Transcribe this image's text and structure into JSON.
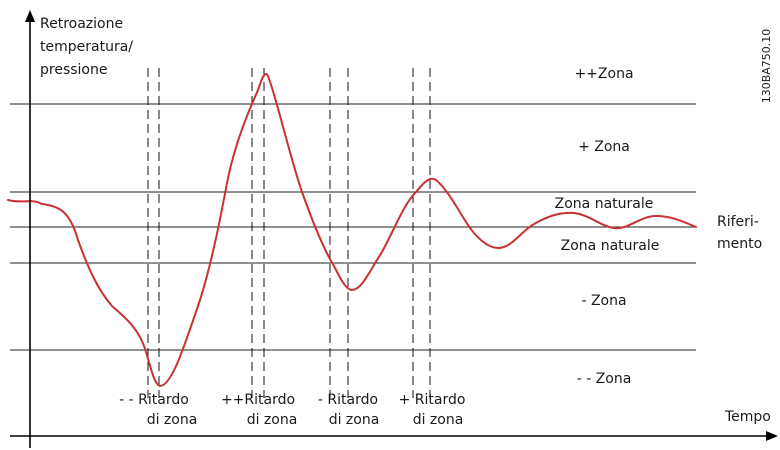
{
  "axes": {
    "y_label": [
      "Retroazione",
      "temperatura/",
      "pressione"
    ],
    "x_label": "Tempo"
  },
  "figure_code": "130BA750.10",
  "zones": {
    "pp_zone": "++Zona",
    "p_zone": "+ Zona",
    "natural_upper": "Zona naturale",
    "natural_lower": "Zona naturale",
    "m_zone": "-   Zona",
    "mm_zone": "- - Zona"
  },
  "reference": [
    "Riferi-",
    "mento"
  ],
  "delays": [
    {
      "prefix": "- - Ritardo",
      "line2": "di zona"
    },
    {
      "prefix": "++Ritardo",
      "line2": "di zona"
    },
    {
      "prefix": "- Ritardo",
      "line2": "di zona"
    },
    {
      "prefix": "+ Ritardo",
      "line2": "di zona"
    }
  ],
  "colors": {
    "curve": "#c83232",
    "lines": "#222222"
  }
}
